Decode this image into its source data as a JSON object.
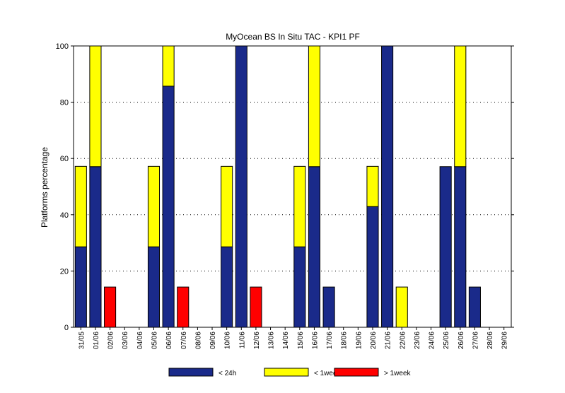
{
  "chart_data": {
    "type": "bar",
    "stacked": true,
    "title": "MyOcean  BS In Situ TAC - KPI1  PF",
    "xlabel": "",
    "ylabel": "Platforms percentage",
    "ylim": [
      0,
      100
    ],
    "yticks": [
      0,
      20,
      40,
      60,
      80,
      100
    ],
    "grid": "horizontal dotted",
    "legend_position": "bottom",
    "categories": [
      "31/05",
      "01/06",
      "02/06",
      "03/06",
      "04/06",
      "05/06",
      "06/06",
      "07/06",
      "08/06",
      "09/06",
      "10/06",
      "11/06",
      "12/06",
      "13/06",
      "14/06",
      "15/06",
      "16/06",
      "17/06",
      "18/06",
      "19/06",
      "20/06",
      "21/06",
      "22/06",
      "23/06",
      "24/06",
      "25/06",
      "26/06",
      "27/06",
      "28/06",
      "29/06"
    ],
    "series": [
      {
        "name": "< 24h",
        "color": "#1a2a8a",
        "values": [
          28.6,
          57.1,
          0,
          0,
          0,
          28.6,
          85.7,
          0,
          0,
          0,
          28.6,
          100,
          0,
          0,
          0,
          28.6,
          57.1,
          14.3,
          0,
          0,
          42.9,
          100,
          0,
          0,
          0,
          57.1,
          57.1,
          14.3,
          0,
          0
        ]
      },
      {
        "name": "< 1week",
        "color": "#ffff00",
        "values": [
          28.6,
          42.9,
          0,
          0,
          0,
          28.6,
          14.3,
          0,
          0,
          0,
          28.6,
          0,
          0,
          0,
          0,
          28.6,
          42.9,
          0,
          0,
          0,
          14.3,
          0,
          14.3,
          0,
          0,
          0,
          42.9,
          0,
          0,
          0
        ]
      },
      {
        "name": "> 1week",
        "color": "#ff0000",
        "values": [
          0,
          0,
          14.3,
          0,
          0,
          0,
          0,
          14.3,
          0,
          0,
          0,
          0,
          14.3,
          0,
          0,
          0,
          0,
          0,
          0,
          0,
          0,
          0,
          0,
          0,
          0,
          0,
          0,
          0,
          0,
          0
        ]
      }
    ]
  }
}
